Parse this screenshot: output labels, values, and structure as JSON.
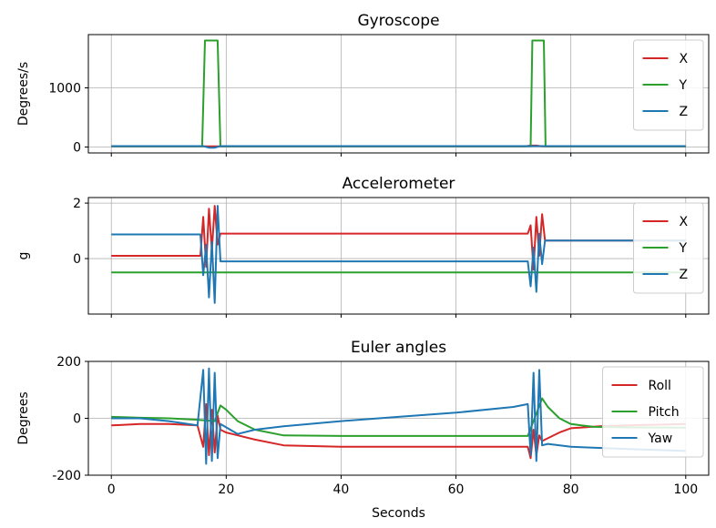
{
  "chart_data": [
    {
      "type": "line",
      "title": "Gyroscope",
      "xlabel": "",
      "ylabel": "Degrees/s",
      "xlim": [
        -4,
        104
      ],
      "ylim": [
        -100,
        1900
      ],
      "xticks": [
        0,
        20,
        40,
        60,
        80,
        100
      ],
      "yticks": [
        0,
        1000
      ],
      "grid": true,
      "legend_position": "top-right",
      "series": [
        {
          "name": "X",
          "color": "#d62728",
          "points": [
            [
              0,
              10
            ],
            [
              16,
              10
            ],
            [
              16.2,
              10
            ],
            [
              19,
              10
            ],
            [
              72,
              10
            ],
            [
              73,
              25
            ],
            [
              74,
              25
            ],
            [
              75,
              10
            ],
            [
              100,
              10
            ]
          ]
        },
        {
          "name": "Y",
          "color": "#2ca02c",
          "points": [
            [
              0,
              10
            ],
            [
              15.8,
              10
            ],
            [
              16.3,
              1800
            ],
            [
              18.5,
              1800
            ],
            [
              19,
              10
            ],
            [
              73,
              10
            ],
            [
              73.3,
              1800
            ],
            [
              75.3,
              1800
            ],
            [
              75.6,
              10
            ],
            [
              100,
              10
            ]
          ]
        },
        {
          "name": "Z",
          "color": "#1f77b4",
          "points": [
            [
              0,
              15
            ],
            [
              16,
              15
            ],
            [
              17,
              -10
            ],
            [
              18,
              -10
            ],
            [
              19,
              15
            ],
            [
              73,
              15
            ],
            [
              75,
              15
            ],
            [
              100,
              15
            ]
          ]
        }
      ]
    },
    {
      "type": "line",
      "title": "Accelerometer",
      "xlabel": "",
      "ylabel": "g",
      "xlim": [
        -4,
        104
      ],
      "ylim": [
        -2,
        2.2
      ],
      "xticks": [
        0,
        20,
        40,
        60,
        80,
        100
      ],
      "yticks": [
        0,
        2
      ],
      "grid": true,
      "legend_position": "top-right",
      "series": [
        {
          "name": "X",
          "color": "#d62728",
          "points": [
            [
              0,
              0.1
            ],
            [
              15.5,
              0.1
            ],
            [
              16,
              1.5
            ],
            [
              16.5,
              -0.3
            ],
            [
              17,
              1.8
            ],
            [
              17.5,
              0.3
            ],
            [
              18,
              1.9
            ],
            [
              18.5,
              0.5
            ],
            [
              19,
              0.9
            ],
            [
              72.5,
              0.9
            ],
            [
              73,
              1.2
            ],
            [
              73.5,
              -0.4
            ],
            [
              74,
              1.5
            ],
            [
              74.5,
              0.1
            ],
            [
              75,
              1.6
            ],
            [
              75.5,
              0.65
            ],
            [
              100,
              0.65
            ]
          ]
        },
        {
          "name": "Y",
          "color": "#2ca02c",
          "points": [
            [
              0,
              -0.5
            ],
            [
              100,
              -0.5
            ]
          ]
        },
        {
          "name": "Z",
          "color": "#1f77b4",
          "points": [
            [
              0,
              0.87
            ],
            [
              15.5,
              0.87
            ],
            [
              16,
              -0.6
            ],
            [
              16.5,
              0.5
            ],
            [
              17,
              -1.4
            ],
            [
              17.5,
              0.6
            ],
            [
              18,
              -1.6
            ],
            [
              18.5,
              1.9
            ],
            [
              19,
              -0.1
            ],
            [
              72.5,
              -0.1
            ],
            [
              73,
              -1.0
            ],
            [
              73.5,
              0.4
            ],
            [
              74,
              -1.2
            ],
            [
              74.5,
              0.9
            ],
            [
              75,
              -0.2
            ],
            [
              75.5,
              0.65
            ],
            [
              100,
              0.65
            ]
          ]
        }
      ]
    },
    {
      "type": "line",
      "title": "Euler angles",
      "xlabel": "Seconds",
      "ylabel": "Degrees",
      "xlim": [
        -4,
        104
      ],
      "ylim": [
        -200,
        200
      ],
      "xticks": [
        0,
        20,
        40,
        60,
        80,
        100
      ],
      "yticks": [
        -200,
        0,
        200
      ],
      "grid": true,
      "legend_position": "top-right",
      "series": [
        {
          "name": "Roll",
          "color": "#d62728",
          "points": [
            [
              0,
              -25
            ],
            [
              5,
              -20
            ],
            [
              10,
              -20
            ],
            [
              15,
              -25
            ],
            [
              16,
              -100
            ],
            [
              16.5,
              50
            ],
            [
              17,
              -130
            ],
            [
              17.5,
              30
            ],
            [
              18,
              -120
            ],
            [
              18.5,
              10
            ],
            [
              19,
              -40
            ],
            [
              20,
              -50
            ],
            [
              25,
              -75
            ],
            [
              30,
              -95
            ],
            [
              40,
              -100
            ],
            [
              72.5,
              -100
            ],
            [
              73,
              -140
            ],
            [
              73.5,
              -40
            ],
            [
              74,
              -130
            ],
            [
              74.5,
              -60
            ],
            [
              75,
              -80
            ],
            [
              76,
              -70
            ],
            [
              78,
              -50
            ],
            [
              80,
              -35
            ],
            [
              85,
              -28
            ],
            [
              90,
              -25
            ],
            [
              100,
              -20
            ]
          ]
        },
        {
          "name": "Pitch",
          "color": "#2ca02c",
          "points": [
            [
              0,
              5
            ],
            [
              5,
              2
            ],
            [
              10,
              0
            ],
            [
              15,
              -5
            ],
            [
              18,
              -10
            ],
            [
              19,
              45
            ],
            [
              20,
              30
            ],
            [
              22,
              -10
            ],
            [
              25,
              -40
            ],
            [
              30,
              -60
            ],
            [
              40,
              -62
            ],
            [
              72.5,
              -62
            ],
            [
              75,
              70
            ],
            [
              76,
              40
            ],
            [
              78,
              0
            ],
            [
              80,
              -20
            ],
            [
              84,
              -30
            ],
            [
              90,
              -32
            ],
            [
              100,
              -33
            ]
          ]
        },
        {
          "name": "Yaw",
          "color": "#1f77b4",
          "points": [
            [
              0,
              0
            ],
            [
              5,
              0
            ],
            [
              10,
              -10
            ],
            [
              15,
              -25
            ],
            [
              16,
              170
            ],
            [
              16.5,
              -160
            ],
            [
              17,
              175
            ],
            [
              17.5,
              -150
            ],
            [
              18,
              160
            ],
            [
              18.5,
              -140
            ],
            [
              19,
              -20
            ],
            [
              22,
              -55
            ],
            [
              25,
              -40
            ],
            [
              30,
              -28
            ],
            [
              40,
              -10
            ],
            [
              50,
              5
            ],
            [
              60,
              20
            ],
            [
              70,
              40
            ],
            [
              72.5,
              50
            ],
            [
              73,
              -130
            ],
            [
              73.5,
              160
            ],
            [
              74,
              -150
            ],
            [
              74.5,
              170
            ],
            [
              75,
              -95
            ],
            [
              76,
              -90
            ],
            [
              80,
              -100
            ],
            [
              90,
              -108
            ],
            [
              100,
              -115
            ]
          ]
        }
      ]
    }
  ]
}
